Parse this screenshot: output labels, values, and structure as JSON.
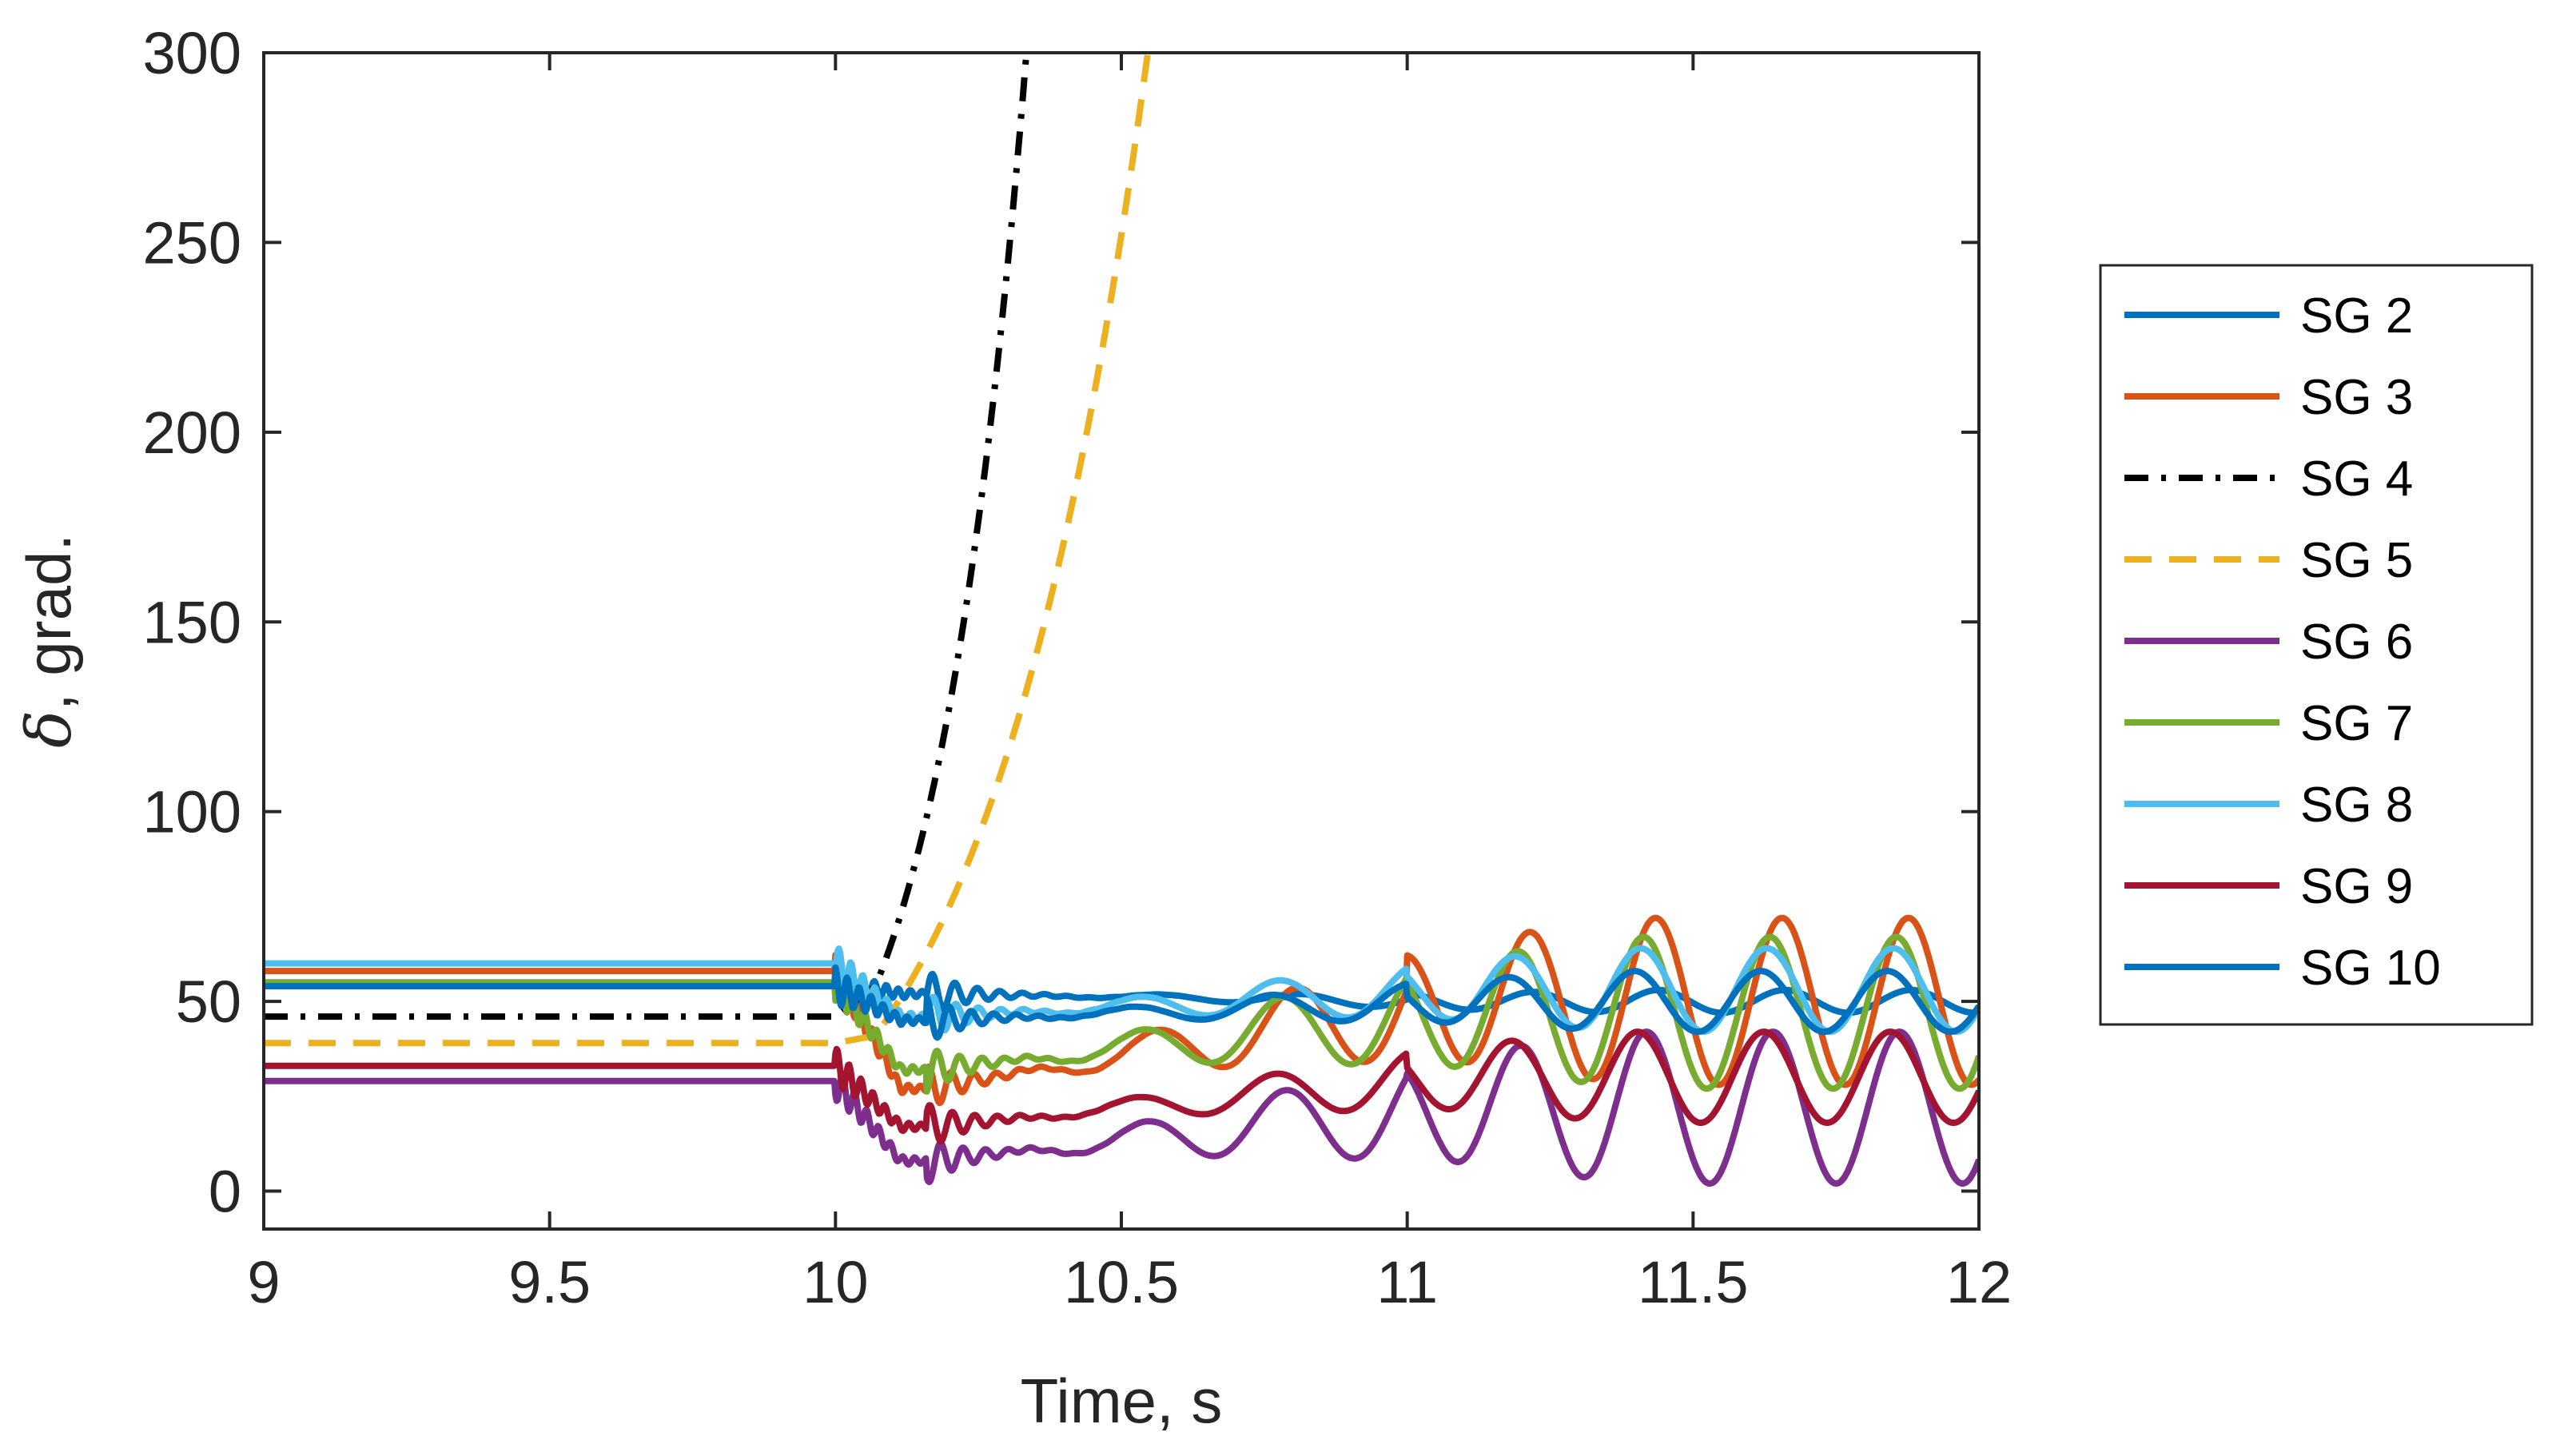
{
  "chart_data": {
    "type": "line",
    "title": "",
    "xlabel": "Time, s",
    "ylabel_symbol": "δ",
    "ylabel": ", grad.",
    "xlim": [
      9,
      12
    ],
    "ylim": [
      -10,
      300
    ],
    "xticks": [
      9,
      9.5,
      10,
      10.5,
      11,
      11.5,
      12
    ],
    "xtick_labels": [
      "9",
      "9.5",
      "10",
      "10.5",
      "11",
      "11.5",
      "12"
    ],
    "yticks": [
      0,
      50,
      100,
      150,
      200,
      250,
      300
    ],
    "ytick_labels": [
      "0",
      "50",
      "100",
      "150",
      "200",
      "250",
      "300"
    ],
    "grid": false,
    "legend_position": "right",
    "series": [
      {
        "name": "SG 2",
        "color": "#0072BD",
        "style": "solid",
        "initial": 55,
        "after_fault": 52,
        "final_mean": 50,
        "osc_amp": 3,
        "growth": 1.0
      },
      {
        "name": "SG 3",
        "color": "#D95319",
        "style": "solid",
        "initial": 58,
        "after_fault": 27,
        "final_mean": 50,
        "osc_amp": 22,
        "growth": 1.0
      },
      {
        "name": "SG 4",
        "color": "#000000",
        "style": "dashdot",
        "initial": 46,
        "diverges": true,
        "x_at_100": 10.15,
        "x_at_300": 10.33
      },
      {
        "name": "SG 5",
        "color": "#EDB120",
        "style": "dashed",
        "initial": 39,
        "diverges": true,
        "x_at_100": 10.22,
        "x_at_300": 10.53
      },
      {
        "name": "SG 6",
        "color": "#7E2F8E",
        "style": "solid",
        "initial": 29,
        "after_fault": 8,
        "final_mean": 22,
        "osc_amp": 20,
        "growth": 1.0
      },
      {
        "name": "SG 7",
        "color": "#77AC30",
        "style": "solid",
        "initial": 55,
        "after_fault": 32,
        "final_mean": 47,
        "osc_amp": 20,
        "growth": 1.0
      },
      {
        "name": "SG 8",
        "color": "#4DBEEE",
        "style": "solid",
        "initial": 60,
        "after_fault": 46,
        "final_mean": 53,
        "osc_amp": 11,
        "growth": 1.0
      },
      {
        "name": "SG 9",
        "color": "#A2142F",
        "style": "solid",
        "initial": 33,
        "after_fault": 17,
        "final_mean": 30,
        "osc_amp": 12,
        "growth": 1.0
      },
      {
        "name": "SG 10",
        "color": "#0072BD",
        "style": "solid",
        "initial": 54,
        "after_fault": 45,
        "final_mean": 50,
        "osc_amp": 8,
        "growth": 1.0
      }
    ],
    "events": {
      "fault_on": 10.0,
      "fault_clear": 10.16
    }
  }
}
